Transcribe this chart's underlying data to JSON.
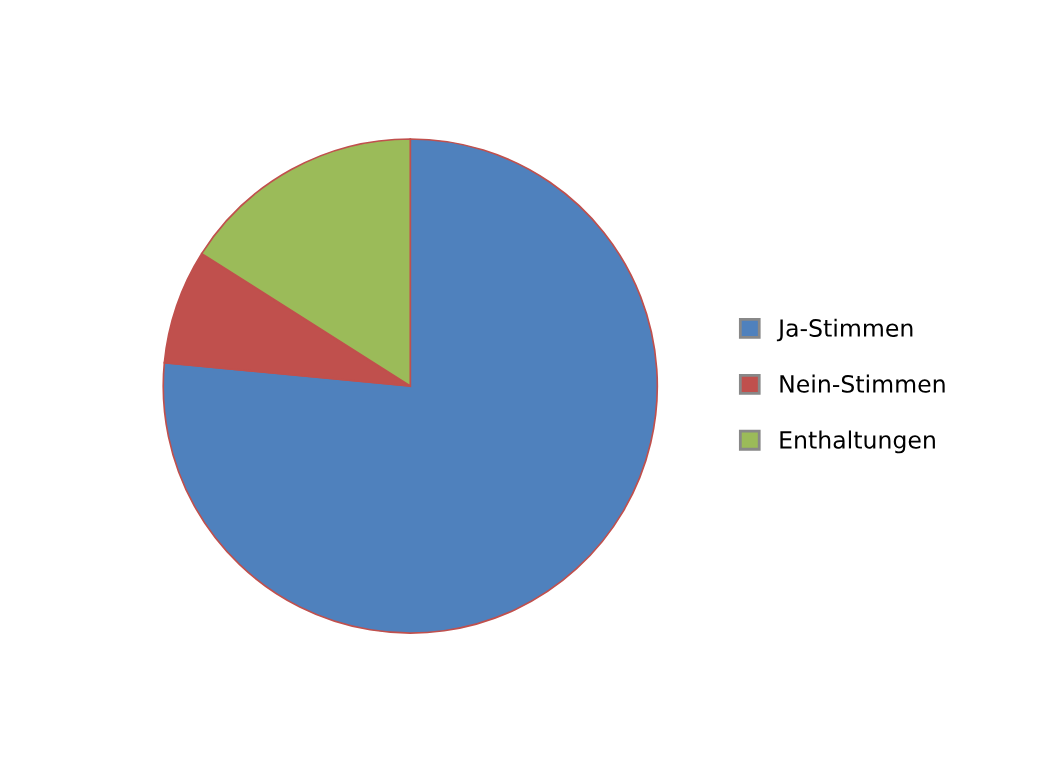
{
  "chart_data": {
    "type": "pie",
    "categories": [
      "Ja-Stimmen",
      "Nein-Stimmen",
      "Enthaltungen"
    ],
    "values": [
      76.5,
      7.5,
      16
    ],
    "colors": [
      "#4f81bd",
      "#c0504d",
      "#9bbb59"
    ],
    "legend": "right"
  }
}
